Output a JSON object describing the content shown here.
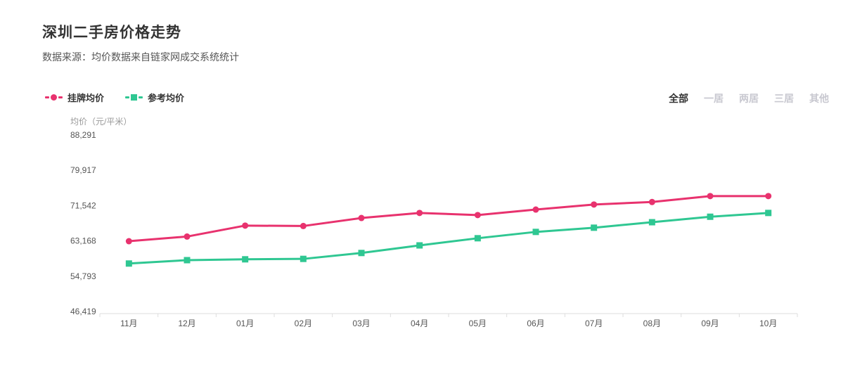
{
  "page": {
    "title": "深圳二手房价格走势",
    "subtitle": "数据来源：均价数据来自链家网成交系统统计"
  },
  "legend": {
    "items": [
      {
        "label": "挂牌均价",
        "color": "#e8326e",
        "marker": "circle"
      },
      {
        "label": "参考均价",
        "color": "#2fc792",
        "marker": "square"
      }
    ]
  },
  "filters": {
    "options": [
      {
        "label": "全部",
        "active": true
      },
      {
        "label": "一居",
        "active": false
      },
      {
        "label": "两居",
        "active": false
      },
      {
        "label": "三居",
        "active": false
      },
      {
        "label": "其他",
        "active": false
      }
    ],
    "active_color": "#333333",
    "inactive_color": "#c8c8d0"
  },
  "chart_data": {
    "type": "line",
    "title": "深圳二手房价格走势",
    "xlabel": "",
    "ylabel": "均价（元/平米）",
    "legend": [
      "挂牌均价",
      "参考均价"
    ],
    "legend_position": "top-left",
    "grid": false,
    "categories": [
      "11月",
      "12月",
      "01月",
      "02月",
      "03月",
      "04月",
      "05月",
      "06月",
      "07月",
      "08月",
      "09月",
      "10月"
    ],
    "series": [
      {
        "name": "挂牌均价",
        "key": "listed",
        "color": "#e8326e",
        "marker": "circle",
        "values": [
          63100,
          64200,
          66800,
          66700,
          68600,
          69800,
          69300,
          70600,
          71800,
          72400,
          73800,
          73800
        ]
      },
      {
        "name": "参考均价",
        "key": "reference",
        "color": "#2fc792",
        "marker": "square",
        "values": [
          57800,
          58600,
          58800,
          58900,
          60300,
          62100,
          63800,
          65300,
          66300,
          67600,
          68900,
          69800
        ]
      }
    ],
    "ylim": [
      46419,
      88291
    ],
    "y_ticks": [
      46419,
      54793,
      63168,
      71542,
      79917,
      88291
    ],
    "y_tick_labels": [
      "46,419",
      "54,793",
      "63,168",
      "71,542",
      "79,917",
      "88,291"
    ],
    "axis_color": "#dddddd",
    "tick_label_color": "#555555",
    "unit_label_color": "#999999"
  }
}
